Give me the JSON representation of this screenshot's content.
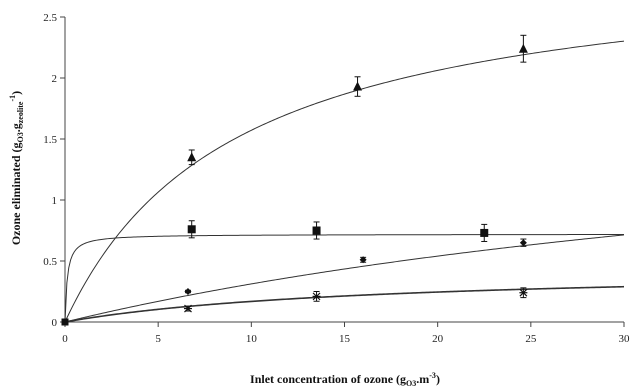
{
  "chart_data": {
    "type": "scatter",
    "title": "",
    "xlabel": {
      "main": "Inlet concentration of ozone (g",
      "sub": "O3",
      "mid": ".m",
      "sup": "-3",
      "end": ")"
    },
    "ylabel": {
      "main": "Ozone eliminated  (g",
      "sub": "O3",
      "mid": ".g",
      "sub2": "zeolite",
      "sup": "-1",
      "end": ")"
    },
    "xlim": [
      0,
      30
    ],
    "ylim": [
      0,
      2.5
    ],
    "xticks": [
      "0",
      "5",
      "10",
      "15",
      "20",
      "25",
      "30"
    ],
    "yticks": [
      "0",
      "0.5",
      "1",
      "1.5",
      "2",
      "2.5"
    ],
    "grid": false,
    "legend": "none",
    "series": [
      {
        "marker": "triangle",
        "points": [
          {
            "x": 0,
            "y": 0,
            "err": 0
          },
          {
            "x": 6.8,
            "y": 1.35,
            "err": 0.06
          },
          {
            "x": 15.7,
            "y": 1.93,
            "err": 0.08
          },
          {
            "x": 24.6,
            "y": 2.24,
            "err": 0.11
          }
        ],
        "fit": {
          "model": "langmuir",
          "qmax": 3.0,
          "K": 0.11
        }
      },
      {
        "marker": "square",
        "points": [
          {
            "x": 0,
            "y": 0,
            "err": 0
          },
          {
            "x": 6.8,
            "y": 0.76,
            "err": 0.07
          },
          {
            "x": 13.5,
            "y": 0.75,
            "err": 0.07
          },
          {
            "x": 22.5,
            "y": 0.73,
            "err": 0.07
          }
        ],
        "fit": {
          "model": "langmuir",
          "qmax": 0.72,
          "K": 8.0
        }
      },
      {
        "marker": "diamond",
        "points": [
          {
            "x": 0,
            "y": 0,
            "err": 0
          },
          {
            "x": 6.6,
            "y": 0.25,
            "err": 0.01
          },
          {
            "x": 16.0,
            "y": 0.51,
            "err": 0.02
          },
          {
            "x": 24.6,
            "y": 0.65,
            "err": 0.03
          }
        ],
        "fit": {
          "model": "langmuir",
          "qmax": 2.0,
          "K": 0.0185
        }
      },
      {
        "marker": "star",
        "points": [
          {
            "x": 0,
            "y": 0,
            "err": 0
          },
          {
            "x": 6.6,
            "y": 0.11,
            "err": 0.02
          },
          {
            "x": 13.5,
            "y": 0.21,
            "err": 0.04
          },
          {
            "x": 24.6,
            "y": 0.24,
            "err": 0.04
          }
        ],
        "fit": {
          "model": "langmuir",
          "qmax": 0.45,
          "K": 0.06
        }
      }
    ]
  }
}
